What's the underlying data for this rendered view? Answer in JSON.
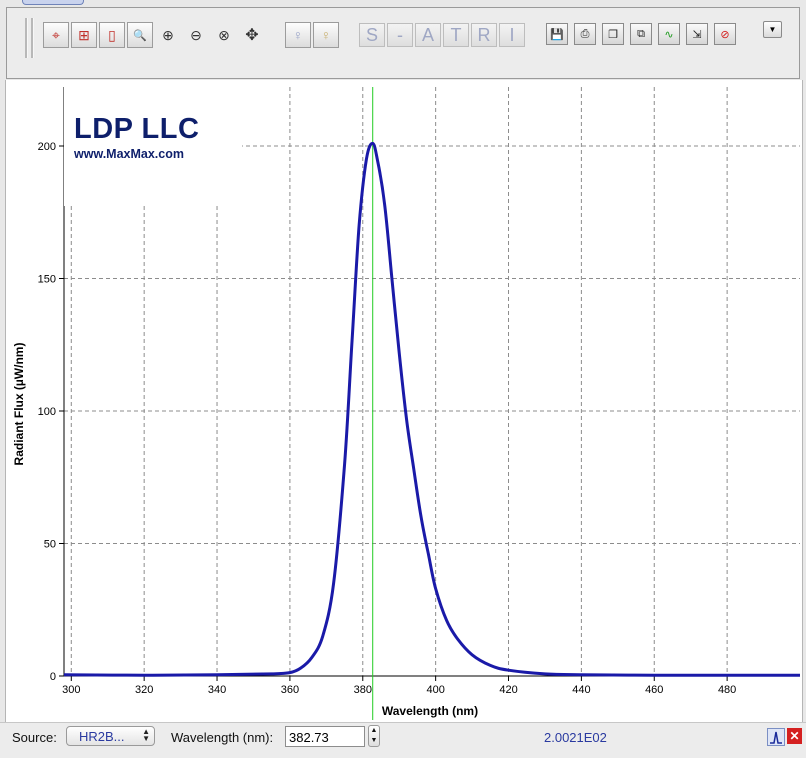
{
  "toolbar": {
    "icons": [
      "crosshair-icon",
      "zoom-fit-icon",
      "zoom-y-icon",
      "zoom-window-icon",
      "zoom-in-icon",
      "zoom-out-icon",
      "zoom-reset-icon",
      "pan-icon",
      "bulb-off-icon",
      "bulb-on-icon"
    ],
    "letter_buttons": [
      "S",
      "-",
      "A",
      "T",
      "R",
      "I"
    ],
    "file_icons": [
      "save-icon",
      "print-icon",
      "copy-icon",
      "copy-window-icon",
      "overlay-icon",
      "export-icon",
      "clear-icon"
    ]
  },
  "logo": {
    "title": "LDP LLC",
    "url": "www.MaxMax.com"
  },
  "chart_data": {
    "type": "line",
    "xlabel": "Wavelength (nm)",
    "ylabel": "Radiant Flux (µW/nm)",
    "xlim": [
      298,
      500
    ],
    "ylim": [
      0,
      210
    ],
    "x_ticks": [
      "300",
      "320",
      "340",
      "360",
      "380",
      "400",
      "420",
      "440",
      "460",
      "480"
    ],
    "y_ticks": [
      "0",
      "50",
      "100",
      "150",
      "200"
    ],
    "grid": true,
    "cursor_x": 382.73,
    "series": [
      {
        "color": "#1a1aa8",
        "x": [
          298,
          320,
          340,
          355,
          360,
          363,
          366,
          369,
          372,
          375,
          377,
          379,
          381,
          382.7,
          384,
          386,
          388,
          390,
          392,
          394,
          396,
          398,
          400,
          403,
          406,
          410,
          415,
          420,
          430,
          440,
          460,
          480,
          500
        ],
        "y": [
          0.5,
          0.3,
          0.5,
          0.8,
          1.3,
          3,
          7,
          15,
          35,
          80,
          125,
          170,
          195,
          201,
          195,
          178,
          150,
          122,
          97,
          78,
          60,
          46,
          33,
          21,
          14,
          8,
          4,
          2.2,
          0.8,
          0.5,
          0.3,
          0.3,
          0.3
        ]
      }
    ]
  },
  "colors": {
    "curve": "#1a1aa8",
    "cursor": "#22cc22",
    "grid": "#8c8c8c"
  },
  "status": {
    "source_label": "Source:",
    "source_value": "HR2B...",
    "wavelength_label": "Wavelength (nm):",
    "wavelength_value": "382.73",
    "readout": "2.0021E02"
  }
}
